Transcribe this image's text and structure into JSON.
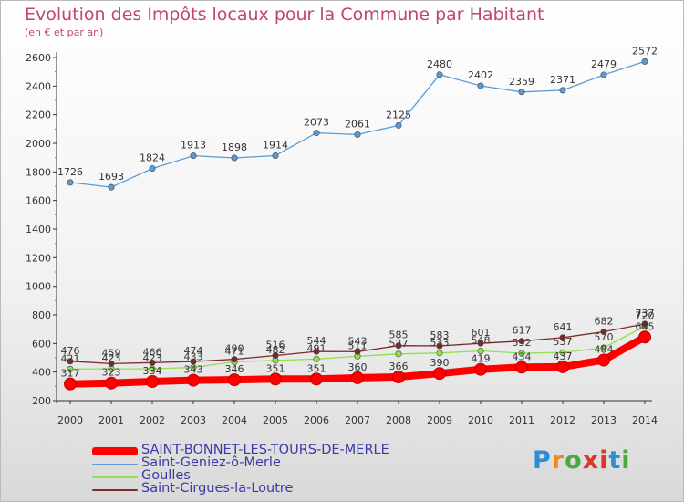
{
  "header": {
    "title": "Evolution des Impôts locaux pour la Commune par Habitant",
    "subtitle": "(en € et par an)"
  },
  "logo": {
    "text": "Proxiti",
    "letters": [
      "P",
      "r",
      "o",
      "x",
      "i",
      "t",
      "i"
    ],
    "colors": [
      "#2a8ed6",
      "#f08a1e",
      "#4aa83e",
      "#e0342b",
      "#e0342b",
      "#2a8ed6",
      "#4aa83e"
    ]
  },
  "chart_data": {
    "type": "line",
    "title": "Evolution des Impôts locaux pour la Commune par Habitant",
    "subtitle": "(en € et par an)",
    "x": [
      2000,
      2001,
      2002,
      2003,
      2004,
      2005,
      2006,
      2007,
      2008,
      2009,
      2010,
      2011,
      2012,
      2013,
      2014
    ],
    "ylim": [
      200,
      2600
    ],
    "yticks": [
      200,
      400,
      600,
      800,
      1000,
      1200,
      1400,
      1600,
      1800,
      2000,
      2200,
      2400,
      2600
    ],
    "grid": false,
    "legend_position": "bottom-left",
    "series": [
      {
        "name": "SAINT-BONNET-LES-TOURS-DE-MERLE",
        "color": "#ff0000",
        "thick": true,
        "values": [
          317,
          323,
          334,
          343,
          346,
          351,
          351,
          360,
          366,
          390,
          419,
          434,
          437,
          484,
          645
        ],
        "labels": [
          "317",
          "323",
          "334",
          "343",
          "346",
          "351",
          "351",
          "360",
          "366",
          "390",
          "419",
          "434",
          "437",
          "484",
          "645"
        ]
      },
      {
        "name": "Saint-Geniez-ô-Merle",
        "color": "#5b9bd5",
        "thick": false,
        "values": [
          1726,
          1693,
          1824,
          1913,
          1898,
          1914,
          2073,
          2061,
          2125,
          2480,
          2402,
          2359,
          2371,
          2479,
          2572
        ],
        "labels": [
          "1726",
          "1693",
          "1824",
          "1913",
          "1898",
          "1914",
          "2073",
          "2061",
          "2125",
          "2480",
          "2402",
          "2359",
          "2371",
          "2479",
          "2572"
        ]
      },
      {
        "name": "Goulles",
        "color": "#90e050",
        "thick": false,
        "values": [
          421,
          423,
          423,
          433,
          471,
          482,
          491,
          511,
          527,
          533,
          548,
          532,
          537,
          570,
          720
        ],
        "labels": [
          "421",
          "423",
          "423",
          "433",
          "471",
          "482",
          "491",
          "511",
          "527",
          "533",
          "548",
          "532",
          "537",
          "570",
          "720"
        ]
      },
      {
        "name": "Saint-Cirgues-la-Loutre",
        "color": "#7a2a2a",
        "thick": false,
        "values": [
          476,
          459,
          466,
          474,
          490,
          516,
          544,
          543,
          585,
          583,
          601,
          617,
          641,
          682,
          737
        ],
        "labels": [
          "476",
          "459",
          "466",
          "474",
          "490",
          "516",
          "544",
          "543",
          "585",
          "583",
          "601",
          "617",
          "641",
          "682",
          "737"
        ]
      }
    ]
  }
}
